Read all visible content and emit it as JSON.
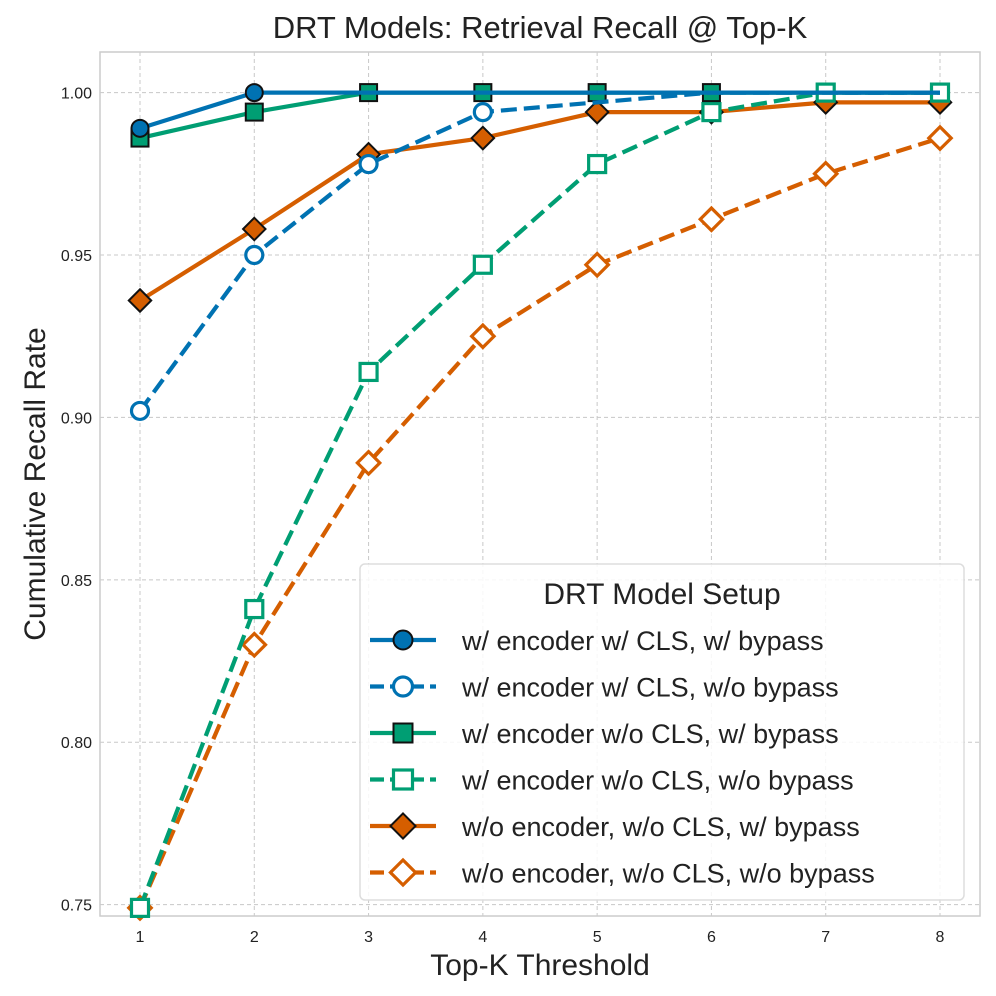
{
  "chart_data": {
    "type": "line",
    "title": "DRT Models: Retrieval Recall @ Top-K",
    "xlabel": "Top-K Threshold",
    "ylabel": "Cumulative Recall Rate",
    "x": [
      1,
      2,
      3,
      4,
      5,
      6,
      7,
      8
    ],
    "xlim": [
      0.65,
      8.35
    ],
    "ylim": [
      0.7465,
      1.0125
    ],
    "xticks": [
      "1",
      "2",
      "3",
      "4",
      "5",
      "6",
      "7",
      "8"
    ],
    "yticks": [
      0.75,
      0.8,
      0.85,
      0.9,
      0.95,
      1.0
    ],
    "ytick_labels": [
      "0.75",
      "0.80",
      "0.85",
      "0.90",
      "0.95",
      "1.00"
    ],
    "grid": true,
    "legend_title": "DRT Model Setup",
    "legend_position": "lower-right",
    "series": [
      {
        "name": "w/ encoder w/ CLS, w/ bypass",
        "values": [
          0.989,
          1.0,
          1.0,
          1.0,
          1.0,
          1.0,
          1.0,
          1.0
        ],
        "color": "#0072B2",
        "marker": "circle",
        "dashed": false,
        "filled": true,
        "marker_x": [
          1,
          2
        ]
      },
      {
        "name": "w/ encoder w/ CLS, w/o bypass",
        "values": [
          0.902,
          0.95,
          0.978,
          0.994,
          0.997,
          1.0,
          1.0,
          1.0
        ],
        "color": "#0072B2",
        "marker": "circle",
        "dashed": true,
        "filled": false,
        "marker_x": [
          1,
          2,
          3,
          4
        ]
      },
      {
        "name": "w/ encoder w/o CLS, w/ bypass",
        "values": [
          0.986,
          0.994,
          1.0,
          1.0,
          1.0,
          1.0,
          1.0,
          1.0
        ],
        "color": "#009E73",
        "marker": "square",
        "dashed": false,
        "filled": true,
        "marker_x": [
          1,
          2,
          3,
          4,
          5,
          6
        ]
      },
      {
        "name": "w/ encoder w/o CLS, w/o bypass",
        "values": [
          0.749,
          0.841,
          0.914,
          0.947,
          0.978,
          0.994,
          1.0,
          1.0
        ],
        "color": "#009E73",
        "marker": "square",
        "dashed": true,
        "filled": false,
        "marker_x": [
          1,
          2,
          3,
          4,
          5,
          6,
          7,
          8
        ]
      },
      {
        "name": "w/o encoder, w/o CLS, w/ bypass",
        "values": [
          0.936,
          0.958,
          0.981,
          0.986,
          0.994,
          0.994,
          0.997,
          0.997
        ],
        "color": "#D55E00",
        "marker": "diamond",
        "dashed": false,
        "filled": true,
        "marker_x": [
          1,
          2,
          3,
          4,
          5,
          6,
          7,
          8
        ]
      },
      {
        "name": "w/o encoder, w/o CLS, w/o bypass",
        "values": [
          0.749,
          0.83,
          0.886,
          0.925,
          0.947,
          0.961,
          0.975,
          0.986
        ],
        "color": "#D55E00",
        "marker": "diamond",
        "dashed": true,
        "filled": false,
        "marker_x": [
          1,
          2,
          3,
          4,
          5,
          6,
          7,
          8
        ]
      }
    ]
  }
}
